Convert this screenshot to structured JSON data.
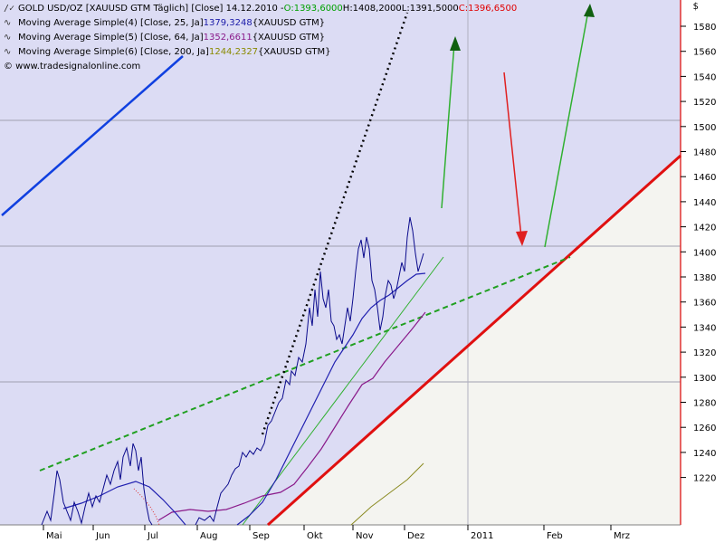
{
  "legend": {
    "line1": {
      "prefix": "GOLD USD/OZ [XAUUSD GTM  Täglich] [Close] 14.12.2010 - ",
      "open": "O:1393,6000",
      "high": " H:1408,2000",
      "low": " L:1391,5000",
      "close": " C:1396,6500",
      "open_color": "#00a000",
      "close_color": "#e00000"
    },
    "line2": {
      "label": "Moving Average Simple(4) [Close, 25, Ja] ",
      "value": "1379,3248",
      "suffix": " {XAUUSD GTM}",
      "color": "#1a1aa8"
    },
    "line3": {
      "label": "Moving Average Simple(5) [Close, 64, Ja] ",
      "value": "1352,6611",
      "suffix": " {XAUUSD GTM}",
      "color": "#8a1a8a"
    },
    "line4": {
      "label": "Moving Average Simple(6) [Close, 200, Ja] ",
      "value": "1244,2327",
      "suffix": " {XAUUSD GTM}",
      "color": "#8a8a00"
    },
    "copyright": "© www.tradesignalonline.com"
  },
  "y_axis": {
    "unit": "$",
    "ticks": [
      "1580",
      "1560",
      "1540",
      "1520",
      "1500",
      "1480",
      "1460",
      "1440",
      "1420",
      "1400",
      "1380",
      "1360",
      "1340",
      "1320",
      "1300",
      "1280",
      "1260",
      "1240",
      "1220"
    ]
  },
  "x_axis": {
    "months": [
      "Mai",
      "Jun",
      "Jul",
      "Aug",
      "Sep",
      "Okt",
      "Nov",
      "Dez",
      "2011",
      "Feb",
      "Mrz"
    ]
  },
  "colors": {
    "chart_bg": "#dcdcf4",
    "lower_region": "#f4f4f0",
    "price": "#0a0a8c",
    "ma25": "#2020b0",
    "ma64": "#8a1a8a",
    "ma200": "#8a8a20",
    "support": "#e01010",
    "trend_dashed": "#20a020",
    "arrow_green": "#30b030",
    "arrow_red": "#e02020",
    "blue_line": "#1040e0"
  }
}
